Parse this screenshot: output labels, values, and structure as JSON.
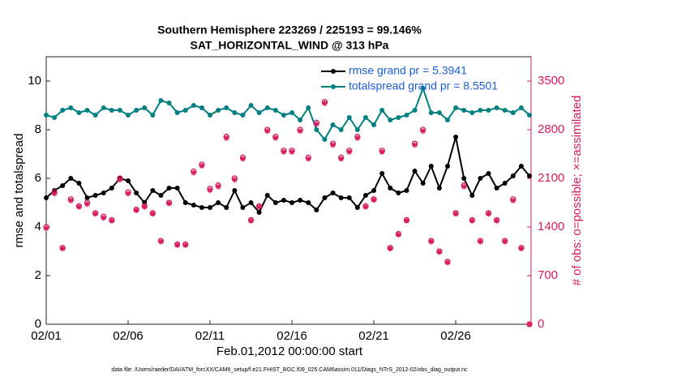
{
  "chart_data": {
    "type": "line",
    "title": "Southern Hemisphere 223269 / 225193 = 99.146%",
    "subtitle": "SAT_HORIZONTAL_WIND @ 313 hPa",
    "xlabel": "Feb.01,2012 00:00:00 start",
    "ylabel": "rmse and totalspread",
    "y2label": "# of obs: o=possible; ×=assimilated",
    "footnote": "data file: /Users/raeder/DAI/ATM_forcXX/CAM6_setup/f.e21.FHIST_BGC.f09_025.CAM6assim.011/Diags_NTrS_2012-02/obs_diag_output.nc",
    "xlim": [
      0,
      29.6
    ],
    "ylim": [
      0,
      11
    ],
    "y2lim": [
      0,
      3850
    ],
    "xticks": [
      {
        "value": 0,
        "label": "02/01"
      },
      {
        "value": 5,
        "label": "02/06"
      },
      {
        "value": 10,
        "label": "02/11"
      },
      {
        "value": 15,
        "label": "02/16"
      },
      {
        "value": 20,
        "label": "02/21"
      },
      {
        "value": 25,
        "label": "02/26"
      }
    ],
    "yticks": [
      0,
      2,
      4,
      6,
      8,
      10
    ],
    "y2ticks": [
      0,
      700,
      1400,
      2100,
      2800,
      3500
    ],
    "legend": "top-right",
    "x": [
      0,
      0.5,
      1,
      1.5,
      2,
      2.5,
      3,
      3.5,
      4,
      4.5,
      5,
      5.5,
      6,
      6.5,
      7,
      7.5,
      8,
      8.5,
      9,
      9.5,
      10,
      10.5,
      11,
      11.5,
      12,
      12.5,
      13,
      13.5,
      14,
      14.5,
      15,
      15.5,
      16,
      16.5,
      17,
      17.5,
      18,
      18.5,
      19,
      19.5,
      20,
      20.5,
      21,
      21.5,
      22,
      22.5,
      23,
      23.5,
      24,
      24.5,
      25,
      25.5,
      26,
      26.5,
      27,
      27.5,
      28,
      28.5,
      29,
      29.5
    ],
    "series": [
      {
        "name": "rmse grand pr = 5.3941",
        "color": "#000000",
        "marker": "dot",
        "values": [
          5.2,
          5.5,
          5.7,
          6.0,
          5.8,
          5.2,
          5.3,
          5.4,
          5.6,
          6.0,
          5.9,
          5.4,
          5.0,
          5.5,
          5.3,
          5.6,
          5.6,
          5.0,
          4.9,
          4.8,
          4.8,
          5.0,
          4.8,
          5.5,
          4.8,
          5.0,
          4.6,
          5.3,
          5.0,
          5.1,
          5.0,
          5.1,
          5.0,
          4.7,
          5.2,
          5.4,
          5.2,
          5.2,
          4.8,
          5.3,
          5.5,
          6.2,
          5.6,
          5.4,
          5.5,
          6.3,
          5.8,
          6.5,
          5.6,
          6.5,
          7.7,
          6.0,
          5.3,
          6.0,
          6.2,
          5.6,
          5.8,
          6.1,
          6.5,
          6.1
        ]
      },
      {
        "name": "totalspread grand pr = 8.5501",
        "color": "#008080",
        "marker": "dot",
        "values": [
          8.6,
          8.5,
          8.8,
          8.9,
          8.7,
          8.8,
          8.6,
          8.9,
          8.8,
          8.8,
          8.6,
          8.8,
          8.9,
          8.6,
          9.2,
          9.1,
          8.7,
          8.8,
          9.0,
          8.9,
          8.6,
          8.8,
          8.9,
          8.7,
          8.6,
          9.0,
          8.7,
          8.9,
          8.8,
          8.6,
          8.7,
          8.4,
          8.9,
          8.0,
          7.6,
          8.2,
          8.0,
          8.5,
          8.0,
          8.5,
          8.2,
          8.8,
          8.4,
          8.5,
          8.6,
          8.8,
          9.7,
          8.7,
          8.7,
          8.4,
          8.9,
          8.8,
          8.7,
          8.8,
          8.8,
          8.9,
          8.8,
          8.7,
          8.9,
          8.6
        ]
      },
      {
        "color": "#d81b60",
        "axis": "y2",
        "marker": "o",
        "values": [
          1400,
          1900,
          1100,
          1800,
          1700,
          1750,
          1600,
          1550,
          1500,
          2100,
          1900,
          1650,
          1700,
          1600,
          1200,
          1750,
          1150,
          1150,
          2200,
          2300,
          1950,
          2000,
          2700,
          2100,
          2400,
          1500,
          1700,
          2800,
          2700,
          2500,
          2500,
          2800,
          2400,
          2900,
          3200,
          2600,
          2400,
          2500,
          2700,
          1700,
          1800,
          2500,
          1100,
          1300,
          1500,
          2600,
          2800,
          1200,
          1050,
          900,
          1600,
          2000,
          1500,
          1200,
          1600,
          1500,
          1200,
          1800,
          1100,
          0
        ]
      },
      {
        "color": "#d81b60",
        "axis": "y2",
        "marker": "*",
        "values": [
          1380,
          1880,
          1090,
          1780,
          1690,
          1730,
          1590,
          1530,
          1490,
          2080,
          1880,
          1640,
          1690,
          1590,
          1190,
          1740,
          1140,
          1140,
          2180,
          2280,
          1930,
          1980,
          2680,
          2080,
          2380,
          1490,
          1690,
          2780,
          2680,
          2480,
          2480,
          2780,
          2380,
          2880,
          3180,
          2580,
          2380,
          2480,
          2680,
          1690,
          1790,
          2480,
          1090,
          1290,
          1490,
          2580,
          2780,
          1190,
          1040,
          890,
          1590,
          1980,
          1490,
          1190,
          1590,
          1490,
          1190,
          1780,
          1090,
          0
        ]
      }
    ]
  }
}
